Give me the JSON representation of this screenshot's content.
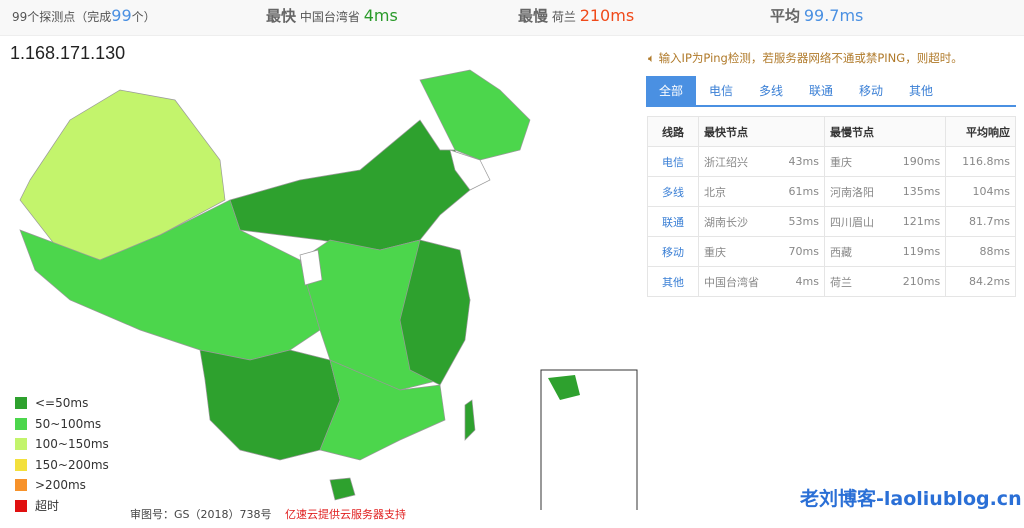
{
  "summary": {
    "nodes_prefix": "99个探测点（完成",
    "nodes_count": "99",
    "nodes_suffix": "个）",
    "fastest_label": "最快",
    "fastest_node": "中国台湾省",
    "fastest_value": "4ms",
    "slowest_label": "最慢",
    "slowest_node": "荷兰",
    "slowest_value": "210ms",
    "avg_label": "平均",
    "avg_value": "99.7ms"
  },
  "ip": "1.168.171.130",
  "notice": "输入IP为Ping检测，若服务器网络不通或禁PING，则超时。",
  "tabs": [
    "全部",
    "电信",
    "多线",
    "联通",
    "移动",
    "其他"
  ],
  "table": {
    "headers": [
      "线路",
      "最快节点",
      "最慢节点",
      "平均响应"
    ],
    "rows": [
      [
        "电信",
        "浙江绍兴",
        "43ms",
        "重庆",
        "190ms",
        "116.8ms"
      ],
      [
        "多线",
        "北京",
        "61ms",
        "河南洛阳",
        "135ms",
        "104ms"
      ],
      [
        "联通",
        "湖南长沙",
        "53ms",
        "四川眉山",
        "121ms",
        "81.7ms"
      ],
      [
        "移动",
        "重庆",
        "70ms",
        "西藏",
        "119ms",
        "88ms"
      ],
      [
        "其他",
        "中国台湾省",
        "4ms",
        "荷兰",
        "210ms",
        "84.2ms"
      ]
    ]
  },
  "legend": [
    {
      "label": "<=50ms",
      "color": "#2ea12e"
    },
    {
      "label": "50~100ms",
      "color": "#4cd64c"
    },
    {
      "label": "100~150ms",
      "color": "#c3f46c"
    },
    {
      "label": "150~200ms",
      "color": "#f3e03c"
    },
    {
      "label": ">200ms",
      "color": "#f7922a"
    },
    {
      "label": "超时",
      "color": "#e01010"
    }
  ],
  "footer": {
    "approval": "审图号：GS（2018）738号",
    "sponsor": "亿速云提供云服务器支持"
  },
  "watermark": "老刘博客-laoliublog.cn"
}
